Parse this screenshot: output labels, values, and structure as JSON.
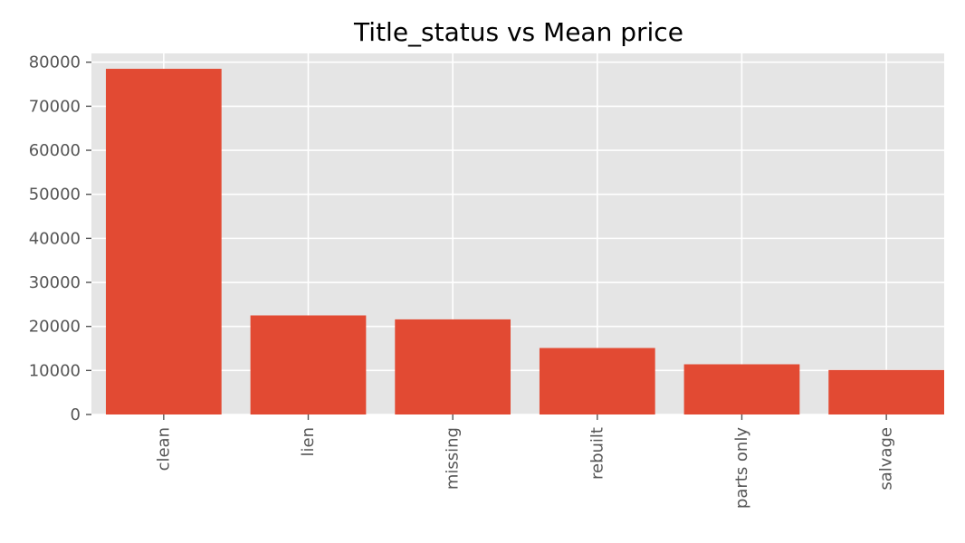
{
  "chart_data": {
    "type": "bar",
    "title": "Title_status vs Mean price",
    "xlabel": "",
    "ylabel": "",
    "categories": [
      "clean",
      "lien",
      "missing",
      "rebuilt",
      "parts only",
      "salvage"
    ],
    "values": [
      78500,
      22500,
      21600,
      15100,
      11400,
      10100
    ],
    "ylim": [
      0,
      82000
    ],
    "yticks": [
      0,
      10000,
      20000,
      30000,
      40000,
      50000,
      60000,
      70000,
      80000
    ],
    "ytick_labels": [
      "0",
      "10000",
      "20000",
      "30000",
      "40000",
      "50000",
      "60000",
      "70000",
      "80000"
    ],
    "grid": true,
    "legend": "none",
    "colors": {
      "bar": "#E24A33",
      "plot_background": "#E5E5E5",
      "grid": "#FFFFFF",
      "tick_label": "#555555"
    }
  }
}
